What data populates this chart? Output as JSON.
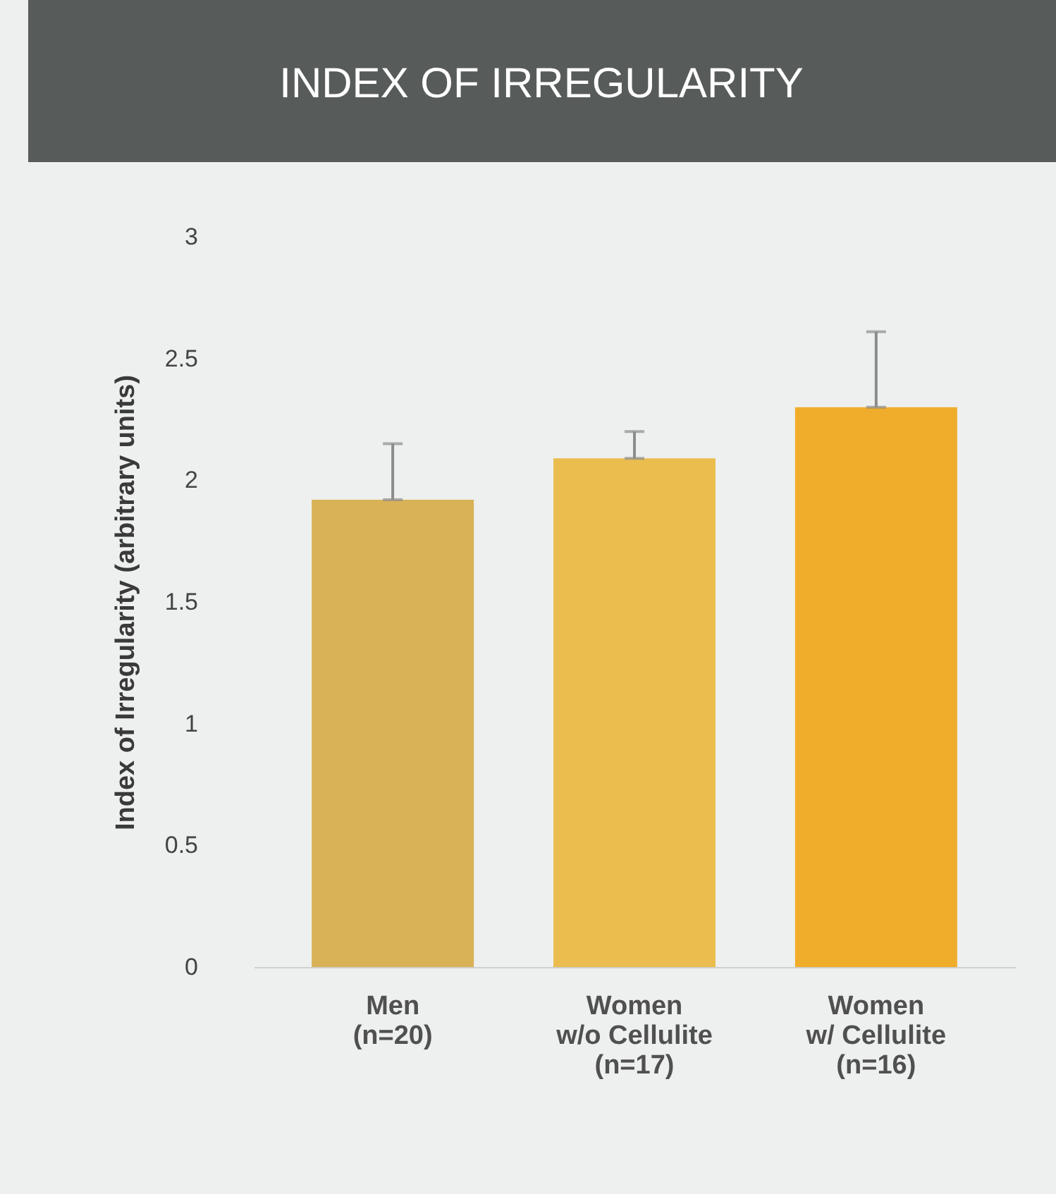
{
  "chart_data": {
    "type": "bar",
    "title": "INDEX OF IRREGULARITY",
    "ylabel": "Index of Irregularity (arbitrary units)",
    "categories": [
      "Men\n(n=20)",
      "Women\nw/o Cellulite\n(n=17)",
      "Women\nw/ Cellulite\n(n=16)"
    ],
    "values": [
      1.92,
      2.09,
      2.3
    ],
    "colors": [
      "#d9b257",
      "#ebbd4f",
      "#f0ad2b"
    ],
    "errors": [
      [
        1.92,
        2.15
      ],
      [
        2.09,
        2.2
      ],
      [
        2.3,
        2.61
      ]
    ],
    "ylim": [
      0,
      3
    ],
    "yticks": [
      0,
      0.5,
      1,
      1.5,
      2,
      2.5,
      3
    ],
    "grid": false
  }
}
